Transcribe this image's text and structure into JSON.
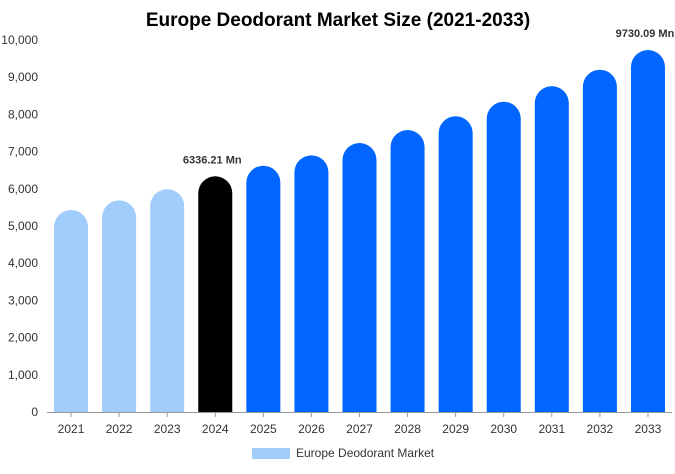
{
  "chart_data": {
    "type": "bar",
    "title": "Europe Deodorant Market Size (2021-2033)",
    "xlabel": "",
    "ylabel": "",
    "categories": [
      "2021",
      "2022",
      "2023",
      "2024",
      "2025",
      "2026",
      "2027",
      "2028",
      "2029",
      "2030",
      "2031",
      "2032",
      "2033"
    ],
    "series": [
      {
        "name": "Europe Deodorant Market",
        "values": [
          5430,
          5690,
          5990,
          6336.21,
          6620,
          6900,
          7230,
          7580,
          7950,
          8340,
          8760,
          9200,
          9730.09
        ]
      }
    ],
    "ylim": [
      0,
      10000
    ],
    "yticks": [
      0,
      1000,
      2000,
      3000,
      4000,
      5000,
      6000,
      7000,
      8000,
      9000,
      10000
    ],
    "ytick_labels": [
      "0",
      "1,000",
      "2,000",
      "3,000",
      "4,000",
      "5,000",
      "6,000",
      "7,000",
      "8,000",
      "9,000",
      "10,000"
    ],
    "data_labels": [
      {
        "category": "2024",
        "text": "6336.21 Mn"
      },
      {
        "category": "2033",
        "text": "9730.09 Mn"
      }
    ],
    "grid": false,
    "legend": {
      "position": "bottom-center",
      "label": "Europe Deodorant Market"
    },
    "colors": {
      "historical": "#a0cdfb",
      "base_year": "#000000",
      "forecast": "#0066ff",
      "axis": "#999999",
      "text": "#333333"
    },
    "category_colors": [
      "historical",
      "historical",
      "historical",
      "base_year",
      "forecast",
      "forecast",
      "forecast",
      "forecast",
      "forecast",
      "forecast",
      "forecast",
      "forecast",
      "forecast"
    ]
  }
}
